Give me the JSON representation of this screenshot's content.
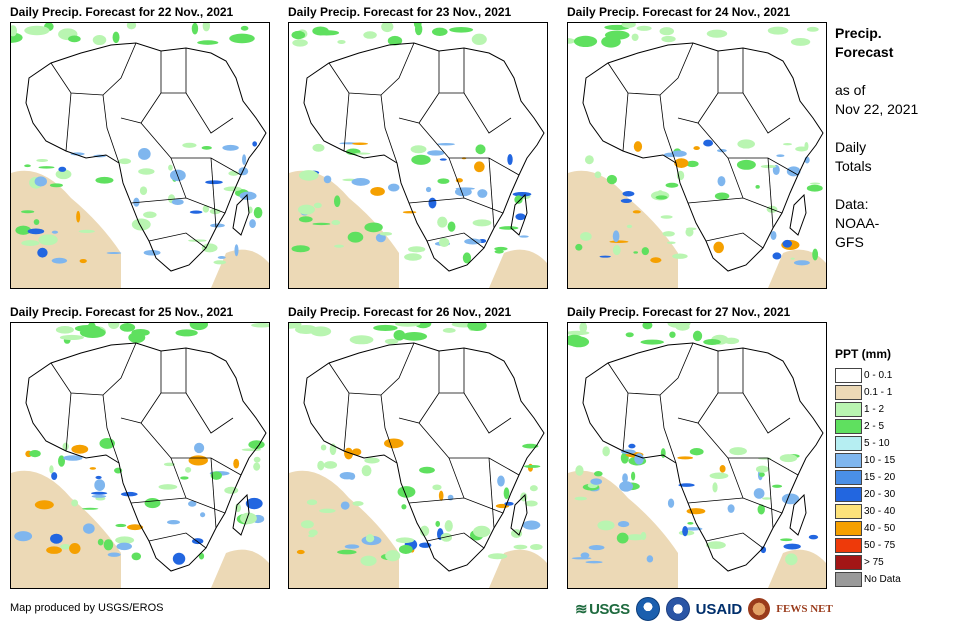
{
  "panels": [
    {
      "title": "Daily Precip. Forecast for 22 Nov., 2021"
    },
    {
      "title": "Daily Precip. Forecast for 23 Nov., 2021"
    },
    {
      "title": "Daily Precip. Forecast for 24 Nov., 2021"
    },
    {
      "title": "Daily Precip. Forecast for 25 Nov., 2021"
    },
    {
      "title": "Daily Precip. Forecast for 26 Nov., 2021"
    },
    {
      "title": "Daily Precip. Forecast for 27 Nov., 2021"
    }
  ],
  "side": {
    "title_line1": "Precip.",
    "title_line2": "Forecast",
    "asof_line1": "as of",
    "asof_line2": "Nov 22, 2021",
    "totals_line1": "Daily",
    "totals_line2": "Totals",
    "source_line1": "Data:",
    "source_line2": "NOAA-",
    "source_line3": "GFS"
  },
  "legend": {
    "title": "PPT (mm)",
    "items": [
      {
        "label": "0 - 0.1",
        "color": "#ffffff"
      },
      {
        "label": "0.1 - 1",
        "color": "#ecd9b6"
      },
      {
        "label": "1 - 2",
        "color": "#b9f5b1"
      },
      {
        "label": "2 - 5",
        "color": "#5fe05f"
      },
      {
        "label": "5 - 10",
        "color": "#b6eef2"
      },
      {
        "label": "10 - 15",
        "color": "#7fb6ee"
      },
      {
        "label": "15 - 20",
        "color": "#4a8fe6"
      },
      {
        "label": "20 - 30",
        "color": "#2266e0"
      },
      {
        "label": "30 - 40",
        "color": "#fde27a"
      },
      {
        "label": "40 - 50",
        "color": "#f5a000"
      },
      {
        "label": "50 - 75",
        "color": "#ee3a0a"
      },
      {
        "label": "> 75",
        "color": "#a31616"
      },
      {
        "label": "No Data",
        "color": "#9a9a9a"
      }
    ]
  },
  "credit": "Map produced by USGS/EROS",
  "logos": {
    "usgs": "USGS",
    "usaid": "USAID",
    "fews": "FEWS NET"
  }
}
